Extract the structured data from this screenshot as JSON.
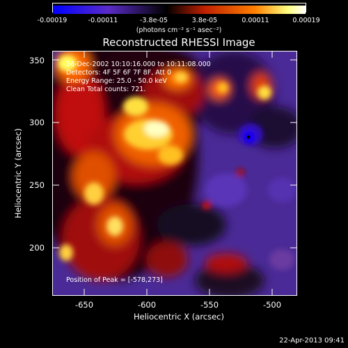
{
  "colorbar": {
    "tick_labels": [
      "-0.00019",
      "-0.00011",
      "-3.8e-05",
      "3.8e-05",
      "0.00011",
      "0.00019"
    ],
    "units": "(photons cm⁻² s⁻¹ asec⁻²)",
    "colors": [
      "#0000ff",
      "#5b2cc8",
      "#000000",
      "#c02000",
      "#ff7a00",
      "#ffffff"
    ]
  },
  "title": "Reconstructed RHESSI Image",
  "annotations": {
    "time": "26-Dec-2002 10:10:16.000 to 10:11:08.000",
    "detectors": "Detectors: 4F 5F 6F 7F 8F, Att 0",
    "energy": "Energy Range: 25.0 - 50.0 keV",
    "clean": "Clean    Total counts: 721.",
    "peak": "Position of Peak = [-578,273]"
  },
  "axes": {
    "xlabel": "Heliocentric X (arcsec)",
    "ylabel": "Heliocentric Y (arcsec)",
    "xticks": [
      "-650",
      "-600",
      "-550",
      "-500"
    ],
    "yticks": [
      "350",
      "300",
      "250",
      "200"
    ],
    "xlim": [
      -675,
      -480
    ],
    "ylim": [
      160,
      355
    ]
  },
  "footer": "22-Apr-2013 09:41"
}
